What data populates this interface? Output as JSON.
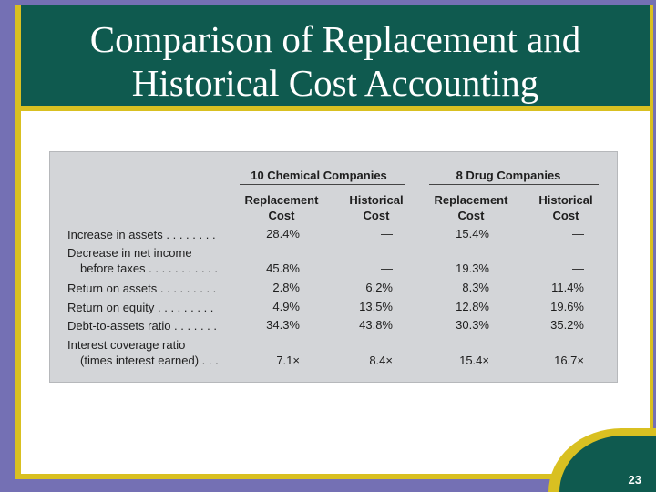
{
  "title": {
    "line1": "Comparison of Replacement and",
    "line2": "Historical Cost Accounting"
  },
  "table": {
    "groups": [
      "10 Chemical Companies",
      "8 Drug Companies"
    ],
    "columns": [
      {
        "line1": "Replacement",
        "line2": "Cost"
      },
      {
        "line1": "Historical",
        "line2": "Cost"
      },
      {
        "line1": "Replacement",
        "line2": "Cost"
      },
      {
        "line1": "Historical",
        "line2": "Cost"
      }
    ],
    "rows": [
      {
        "label1": "Increase in assets . . . . . . . .",
        "label2": "",
        "values": [
          "28.4%",
          "—",
          "15.4%",
          "—"
        ]
      },
      {
        "label1": "Decrease in net income",
        "label2": "before taxes . . . . . . . . . . .",
        "values": [
          "45.8%",
          "—",
          "19.3%",
          "—"
        ]
      },
      {
        "label1": "Return on assets . . . . . . . . .",
        "label2": "",
        "values": [
          "2.8%",
          "6.2%",
          "8.3%",
          "11.4%"
        ]
      },
      {
        "label1": "Return on equity . . . . . . . . .",
        "label2": "",
        "values": [
          "4.9%",
          "13.5%",
          "12.8%",
          "19.6%"
        ]
      },
      {
        "label1": "Debt-to-assets ratio . . . . . . .",
        "label2": "",
        "values": [
          "34.3%",
          "43.8%",
          "30.3%",
          "35.2%"
        ]
      },
      {
        "label1": "Interest coverage ratio",
        "label2": "(times interest earned) . . .",
        "values": [
          "7.1×",
          "8.4×",
          "15.4×",
          "16.7×"
        ]
      }
    ]
  },
  "slide_number": "23"
}
